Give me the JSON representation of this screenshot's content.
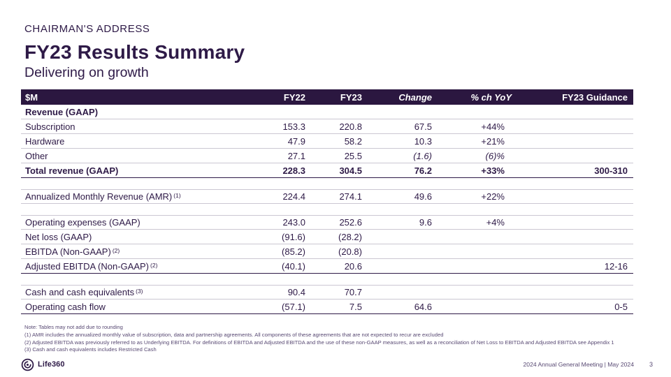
{
  "slide": {
    "eyebrow": "CHAIRMAN'S ADDRESS",
    "title": "FY23 Results Summary",
    "subtitle": "Delivering on growth"
  },
  "colors": {
    "brand_dark": "#2E1A47",
    "header_bg": "#2B1740",
    "row_line": "#CBC7D2",
    "muted_text": "#584973"
  },
  "table": {
    "columns": [
      {
        "label": "$M",
        "italic": false
      },
      {
        "label": "FY22",
        "italic": false
      },
      {
        "label": "FY23",
        "italic": false
      },
      {
        "label": "Change",
        "italic": true
      },
      {
        "label": "% ch YoY",
        "italic": true
      },
      {
        "label": "FY23 Guidance",
        "italic": false
      }
    ],
    "rows": [
      {
        "label": "Revenue (GAAP)",
        "bold": true,
        "fy22": "",
        "fy23": "",
        "change": "",
        "yoy": "",
        "guidance": "",
        "border": "thin"
      },
      {
        "label": "Subscription",
        "fy22": "153.3",
        "fy23": "220.8",
        "change": "67.5",
        "yoy": "+44%",
        "guidance": "",
        "border": "thin"
      },
      {
        "label": "Hardware",
        "fy22": "47.9",
        "fy23": "58.2",
        "change": "10.3",
        "yoy": "+21%",
        "guidance": "",
        "border": "thin"
      },
      {
        "label": "Other",
        "fy22": "27.1",
        "fy23": "25.5",
        "change": "(1.6)",
        "change_italic": true,
        "yoy": "(6)%",
        "yoy_italic": true,
        "guidance": "",
        "border": "thin"
      },
      {
        "label": "Total revenue (GAAP)",
        "bold": true,
        "fy22": "228.3",
        "fy23": "304.5",
        "change": "76.2",
        "yoy": "+33%",
        "guidance": "300-310",
        "border": "dark"
      },
      {
        "gap": true
      },
      {
        "label": "Annualized Monthly Revenue (AMR)",
        "sup": "(1)",
        "fy22": "224.4",
        "fy23": "274.1",
        "change": "49.6",
        "yoy": "+22%",
        "guidance": "",
        "border": "thin",
        "top_border": "thin"
      },
      {
        "gap": true
      },
      {
        "label": "Operating expenses (GAAP)",
        "fy22": "243.0",
        "fy23": "252.6",
        "change": "9.6",
        "yoy": "+4%",
        "guidance": "",
        "border": "thin",
        "top_border": "thin"
      },
      {
        "label": "Net loss (GAAP)",
        "fy22": "(91.6)",
        "fy23": "(28.2)",
        "change": "",
        "yoy": "",
        "guidance": "",
        "border": "thin"
      },
      {
        "label": "EBITDA (Non-GAAP)",
        "sup": "(2)",
        "fy22": "(85.2)",
        "fy23": "(20.8)",
        "change": "",
        "yoy": "",
        "guidance": "",
        "border": "thin"
      },
      {
        "label": "Adjusted EBITDA (Non-GAAP)",
        "sup": "(2)",
        "fy22": "(40.1)",
        "fy23": "20.6",
        "change": "",
        "yoy": "",
        "guidance": "12-16",
        "border": "dark"
      },
      {
        "gap": true
      },
      {
        "label": "Cash and cash equivalents",
        "sup": "(3)",
        "fy22": "90.4",
        "fy23": "70.7",
        "change": "",
        "yoy": "",
        "guidance": "",
        "border": "thin",
        "top_border": "thin"
      },
      {
        "label": "Operating cash flow",
        "fy22": "(57.1)",
        "fy23": "7.5",
        "change": "64.6",
        "yoy": "",
        "guidance": "0-5",
        "border": "dark"
      }
    ]
  },
  "footnotes": [
    "Note: Tables may not add due to rounding",
    "(1) AMR includes the annualized monthly value of subscription, data and partnership agreements. All components of these agreements that are not expected to recur are excluded",
    "(2) Adjusted EBITDA was previously referred to as Underlying EBITDA. For definitions of EBITDA and Adjusted EBITDA and the use of these non-GAAP measures, as well as a reconciliation of Net Loss to EBITDA and Adjusted EBITDA see Appendix 1",
    "(3) Cash and cash equivalents includes Restricted Cash"
  ],
  "footer": {
    "logo_text": "Life360",
    "meeting": "2024 Annual General Meeting  | May 2024",
    "page": "3"
  }
}
